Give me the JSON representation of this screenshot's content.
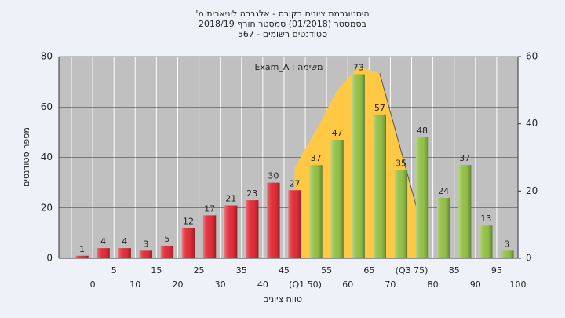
{
  "chart_data": {
    "type": "bar",
    "title": "היסטוגרמת ציונים בקורס - אלגברה ליניארית מ'",
    "subtitle": "בסמסטר (01/2018) סמסטר חורף 2018/19",
    "subtitle2": "סטודנטים רשומים - 567",
    "annotation": "משימה : Exam_A",
    "xlabel": "טווח ציונים",
    "ylabel": "מספר סטודנטים",
    "categories": [
      "0",
      "5",
      "10",
      "15",
      "20",
      "25",
      "30",
      "35",
      "40",
      "45",
      "(Q1 50)",
      "55",
      "60",
      "65",
      "70",
      "(Q3 75)",
      "80",
      "85",
      "90",
      "95",
      "100"
    ],
    "values": [
      1,
      4,
      4,
      3,
      5,
      12,
      17,
      21,
      23,
      30,
      27,
      37,
      47,
      73,
      57,
      35,
      48,
      24,
      37,
      13,
      3
    ],
    "colors": [
      "#e0303a",
      "#e0303a",
      "#e0303a",
      "#e0303a",
      "#e0303a",
      "#e0303a",
      "#e0303a",
      "#e0303a",
      "#e0303a",
      "#e0303a",
      "#e0303a",
      "#94c04a",
      "#94c04a",
      "#94c04a",
      "#94c04a",
      "#94c04a",
      "#94c04a",
      "#94c04a",
      "#94c04a",
      "#94c04a",
      "#94c04a"
    ],
    "area": {
      "axis": "y2",
      "color": "#ffc845",
      "values": [
        null,
        null,
        null,
        null,
        null,
        null,
        null,
        null,
        null,
        null,
        27,
        38,
        50,
        57,
        55,
        32,
        9,
        null,
        null,
        null,
        null
      ]
    },
    "ylim": [
      0,
      80
    ],
    "yticks": [
      0,
      20,
      40,
      60,
      80
    ],
    "y2lim": [
      0,
      60
    ],
    "y2ticks": [
      0,
      20,
      40,
      60
    ],
    "grid": true
  }
}
